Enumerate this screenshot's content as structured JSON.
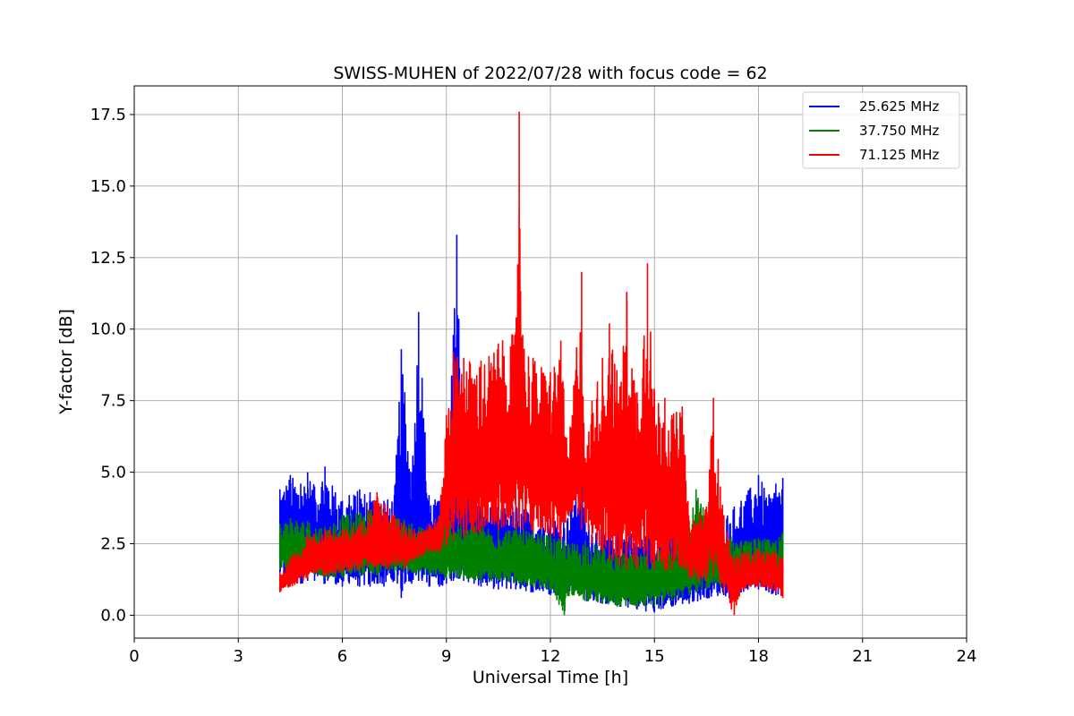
{
  "chart_data": {
    "type": "line",
    "title": "SWISS-MUHEN of 2022/07/28 with focus code = 62",
    "xlabel": "Universal Time [h]",
    "ylabel": "Y-factor [dB]",
    "xlim": [
      0,
      24
    ],
    "ylim": [
      -0.8,
      18.5
    ],
    "xticks": [
      0,
      3,
      6,
      9,
      12,
      15,
      18,
      21,
      24
    ],
    "xtick_labels": [
      "0",
      "3",
      "6",
      "9",
      "12",
      "15",
      "18",
      "21",
      "24"
    ],
    "yticks": [
      0.0,
      2.5,
      5.0,
      7.5,
      10.0,
      12.5,
      15.0,
      17.5
    ],
    "ytick_labels": [
      "0.0",
      "2.5",
      "5.0",
      "7.5",
      "10.0",
      "12.5",
      "15.0",
      "17.5"
    ],
    "grid": true,
    "legend_position": "top-right",
    "series": [
      {
        "name": "25.625 MHz",
        "color": "#0000ff",
        "x": [
          4.2,
          4.5,
          4.8,
          5.0,
          5.2,
          5.5,
          5.8,
          6.0,
          6.2,
          6.5,
          6.8,
          7.0,
          7.2,
          7.5,
          7.7,
          7.8,
          8.0,
          8.2,
          8.3,
          8.5,
          8.8,
          9.0,
          9.2,
          9.3,
          9.5,
          9.8,
          10.0,
          10.5,
          11.0,
          11.5,
          12.0,
          12.5,
          12.9,
          13.0,
          13.5,
          14.0,
          14.5,
          15.0,
          15.5,
          16.0,
          16.5,
          17.0,
          17.3,
          17.5,
          18.0,
          18.3,
          18.5,
          18.7
        ],
        "high": [
          4.4,
          4.9,
          4.6,
          5.0,
          4.5,
          5.2,
          4.3,
          4.0,
          4.2,
          4.4,
          4.3,
          4.1,
          4.0,
          4.2,
          9.3,
          7.8,
          5.0,
          10.6,
          8.3,
          4.2,
          4.0,
          4.5,
          9.8,
          13.3,
          5.5,
          4.5,
          4.0,
          3.8,
          3.9,
          3.6,
          3.5,
          3.4,
          5.4,
          3.3,
          3.1,
          3.0,
          2.9,
          2.8,
          3.0,
          2.9,
          3.2,
          3.5,
          3.8,
          4.0,
          4.9,
          4.2,
          4.6,
          4.8
        ],
        "low": [
          1.3,
          1.2,
          1.1,
          1.2,
          1.2,
          1.1,
          1.1,
          1.0,
          1.1,
          1.0,
          1.0,
          1.1,
          1.0,
          1.2,
          0.6,
          1.1,
          1.1,
          1.2,
          1.2,
          1.0,
          1.0,
          1.1,
          1.2,
          1.3,
          1.2,
          1.1,
          1.0,
          0.9,
          0.9,
          0.8,
          0.7,
          0.7,
          0.8,
          0.5,
          0.4,
          0.3,
          0.2,
          0.1,
          0.3,
          0.4,
          0.6,
          0.7,
          0.5,
          0.8,
          0.9,
          0.8,
          0.7,
          0.8
        ]
      },
      {
        "name": "37.750 MHz",
        "color": "#008000",
        "x": [
          4.2,
          4.5,
          5.0,
          5.5,
          6.0,
          6.5,
          7.0,
          7.5,
          8.0,
          8.5,
          9.0,
          9.5,
          10.0,
          10.5,
          11.0,
          11.5,
          12.0,
          12.4,
          12.5,
          13.0,
          13.5,
          14.0,
          14.5,
          15.0,
          15.5,
          16.0,
          16.2,
          16.5,
          17.0,
          17.5,
          18.0,
          18.5,
          18.7
        ],
        "high": [
          3.2,
          3.4,
          3.3,
          3.1,
          3.5,
          3.6,
          3.8,
          3.5,
          3.2,
          3.0,
          3.4,
          3.3,
          3.2,
          3.0,
          3.1,
          2.9,
          2.8,
          2.6,
          2.5,
          2.6,
          2.4,
          2.2,
          2.1,
          2.3,
          2.6,
          3.0,
          4.4,
          3.5,
          2.9,
          2.6,
          2.7,
          2.6,
          2.9
        ],
        "low": [
          1.6,
          1.5,
          1.4,
          1.3,
          1.3,
          1.4,
          1.4,
          1.5,
          1.5,
          1.4,
          1.3,
          1.3,
          1.2,
          1.2,
          1.1,
          1.0,
          0.9,
          0.0,
          0.7,
          0.5,
          0.4,
          0.3,
          0.3,
          0.3,
          0.5,
          0.7,
          0.8,
          0.9,
          1.0,
          1.0,
          1.1,
          1.2,
          1.3
        ]
      },
      {
        "name": "71.125 MHz",
        "color": "#ff0000",
        "x": [
          4.2,
          4.5,
          5.0,
          5.5,
          6.0,
          6.5,
          7.0,
          7.3,
          7.5,
          7.8,
          8.0,
          8.5,
          8.8,
          9.0,
          9.2,
          9.5,
          10.0,
          10.5,
          11.0,
          11.1,
          11.2,
          11.5,
          12.0,
          12.3,
          12.5,
          12.9,
          13.0,
          13.2,
          13.5,
          13.7,
          14.0,
          14.2,
          14.5,
          14.8,
          15.0,
          15.3,
          15.5,
          15.8,
          16.0,
          16.3,
          16.5,
          16.7,
          16.9,
          17.0,
          17.3,
          17.5,
          18.0,
          18.5,
          18.7
        ],
        "high": [
          1.5,
          2.0,
          2.8,
          3.0,
          3.0,
          3.2,
          4.3,
          3.8,
          3.5,
          3.2,
          3.0,
          3.2,
          3.5,
          7.0,
          9.2,
          9.0,
          8.9,
          9.5,
          9.9,
          17.6,
          9.8,
          9.0,
          8.5,
          9.6,
          5.5,
          12.0,
          5.5,
          7.5,
          9.0,
          10.2,
          8.0,
          11.3,
          7.8,
          12.3,
          7.8,
          7.6,
          7.0,
          7.3,
          3.3,
          3.6,
          3.8,
          7.6,
          4.5,
          3.5,
          2.0,
          2.2,
          2.3,
          2.2,
          2.0
        ],
        "low": [
          0.8,
          1.0,
          1.3,
          1.4,
          1.5,
          1.6,
          1.7,
          1.6,
          1.8,
          1.6,
          1.9,
          2.2,
          2.2,
          2.4,
          2.6,
          2.7,
          2.9,
          3.0,
          3.0,
          3.1,
          3.0,
          2.9,
          2.8,
          2.6,
          3.5,
          3.0,
          3.2,
          2.5,
          2.2,
          1.9,
          1.7,
          1.6,
          1.6,
          1.7,
          1.6,
          1.6,
          1.6,
          1.7,
          1.3,
          1.2,
          1.2,
          1.4,
          1.2,
          0.8,
          0.0,
          0.9,
          1.0,
          0.8,
          0.6
        ]
      }
    ]
  }
}
